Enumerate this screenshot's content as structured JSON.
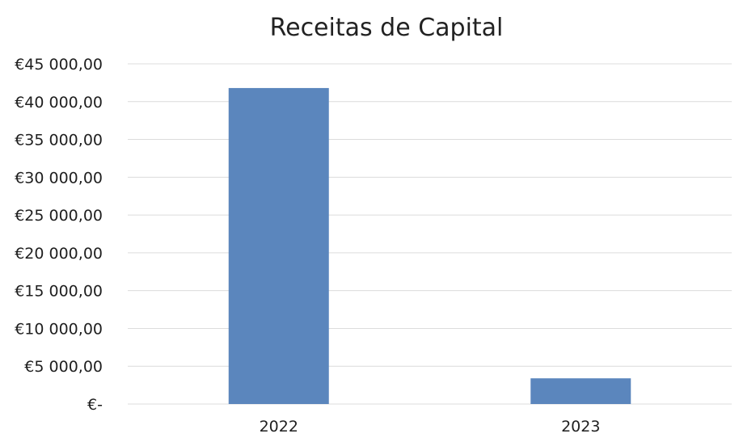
{
  "chart_data": {
    "type": "bar",
    "title": "Receitas de Capital",
    "xlabel": "",
    "ylabel": "",
    "categories": [
      "2022",
      "2023"
    ],
    "values": [
      41800,
      3400
    ],
    "ylim": [
      0,
      45000
    ],
    "y_ticks": [
      {
        "value": 0,
        "label": "€-"
      },
      {
        "value": 5000,
        "label": "€5 000,00"
      },
      {
        "value": 10000,
        "label": "€10 000,00"
      },
      {
        "value": 15000,
        "label": "€15 000,00"
      },
      {
        "value": 20000,
        "label": "€20 000,00"
      },
      {
        "value": 25000,
        "label": "€25 000,00"
      },
      {
        "value": 30000,
        "label": "€30 000,00"
      },
      {
        "value": 35000,
        "label": "€35 000,00"
      },
      {
        "value": 40000,
        "label": "€40 000,00"
      },
      {
        "value": 45000,
        "label": "€45 000,00"
      }
    ],
    "grid": true,
    "legend": "none",
    "bar_color": "#5b86bd",
    "grid_color": "#dcdcdc"
  }
}
